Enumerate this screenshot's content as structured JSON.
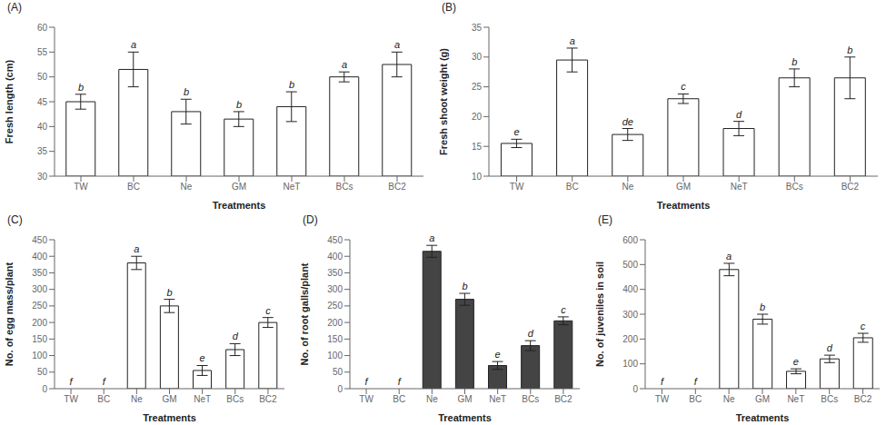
{
  "chart_data": [
    {
      "type": "bar",
      "title": "(A)",
      "xlabel": "Treatments",
      "ylabel": "Fresh length (cm)",
      "categories": [
        "TW",
        "BC",
        "Ne",
        "GM",
        "NeT",
        "BCs",
        "BC2"
      ],
      "values": [
        45,
        51.5,
        43,
        41.5,
        44,
        50,
        52.5
      ],
      "errors": [
        1.5,
        3.5,
        2.5,
        1.5,
        3.0,
        1.0,
        2.5
      ],
      "annotations": [
        "b",
        "a",
        "b",
        "b",
        "b",
        "a",
        "a"
      ],
      "color": "white",
      "ylim": [
        30,
        60
      ],
      "yticks": [
        30,
        35,
        40,
        45,
        50,
        55,
        60
      ],
      "grid": false
    },
    {
      "type": "bar",
      "title": "(B)",
      "xlabel": "Treatments",
      "ylabel": "Fresh shoot weight (g)",
      "categories": [
        "TW",
        "BC",
        "Ne",
        "GM",
        "NeT",
        "BCs",
        "BC2"
      ],
      "values": [
        15.5,
        29.5,
        17.0,
        23.0,
        18.0,
        26.5,
        26.5
      ],
      "errors": [
        0.7,
        2.0,
        1.0,
        0.8,
        1.2,
        1.5,
        3.5
      ],
      "annotations": [
        "e",
        "a",
        "de",
        "c",
        "d",
        "b",
        "b"
      ],
      "color": "white",
      "ylim": [
        10,
        35
      ],
      "yticks": [
        10,
        15,
        20,
        25,
        30,
        35
      ],
      "grid": false
    },
    {
      "type": "bar",
      "title": "(C)",
      "xlabel": "Treatments",
      "ylabel": "No. of egg mass/plant",
      "categories": [
        "TW",
        "BC",
        "Ne",
        "GM",
        "NeT",
        "BCs",
        "BC2"
      ],
      "values": [
        0,
        0,
        380,
        250,
        55,
        118,
        200
      ],
      "errors": [
        0,
        0,
        20,
        20,
        15,
        18,
        15
      ],
      "annotations": [
        "f",
        "f",
        "a",
        "b",
        "e",
        "d",
        "c"
      ],
      "color": "white",
      "ylim": [
        0,
        450
      ],
      "yticks": [
        0,
        50,
        100,
        150,
        200,
        250,
        300,
        350,
        400,
        450
      ],
      "grid": false
    },
    {
      "type": "bar",
      "title": "(D)",
      "xlabel": "Treatments",
      "ylabel": "No. of root galls/plant",
      "categories": [
        "TW",
        "BC",
        "Ne",
        "GM",
        "NeT",
        "BCs",
        "BC2"
      ],
      "values": [
        0,
        0,
        415,
        270,
        70,
        130,
        205
      ],
      "errors": [
        0,
        0,
        18,
        18,
        12,
        15,
        12
      ],
      "annotations": [
        "f",
        "f",
        "a",
        "b",
        "e",
        "d",
        "c"
      ],
      "color": "#444444",
      "ylim": [
        0,
        450
      ],
      "yticks": [
        0,
        50,
        100,
        150,
        200,
        250,
        300,
        350,
        400,
        450
      ],
      "grid": false
    },
    {
      "type": "bar",
      "title": "(E)",
      "xlabel": "Treatments",
      "ylabel": "No. of juveniles in soil",
      "categories": [
        "TW",
        "BC",
        "Ne",
        "GM",
        "NeT",
        "BCs",
        "BC2"
      ],
      "values": [
        0,
        0,
        480,
        280,
        70,
        120,
        205
      ],
      "errors": [
        0,
        0,
        25,
        20,
        10,
        15,
        18
      ],
      "annotations": [
        "f",
        "f",
        "a",
        "b",
        "e",
        "d",
        "c"
      ],
      "color": "white",
      "ylim": [
        0,
        600
      ],
      "yticks": [
        0,
        100,
        200,
        300,
        400,
        500,
        600
      ],
      "grid": false
    }
  ]
}
